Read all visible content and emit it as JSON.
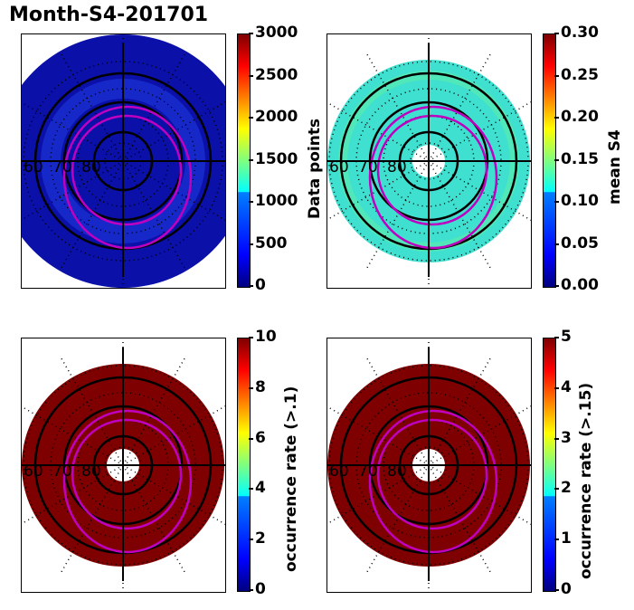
{
  "figure_title": "Month-S4-201701",
  "chart_data": [
    {
      "type": "heatmap",
      "projection": "polar-stereographic",
      "title": "",
      "colorbar_label": "Data points",
      "colorbar_ticks": [
        "0",
        "500",
        "1000",
        "1500",
        "2000",
        "2500",
        "3000"
      ],
      "colorbar_range": [
        0,
        3000
      ],
      "colormap": "jet",
      "latitude_labels": [
        "60",
        "70",
        "80"
      ],
      "dominant_value_description": "mostly 0-500, ring near 65-70 lat around 400-600"
    },
    {
      "type": "heatmap",
      "projection": "polar-stereographic",
      "title": "",
      "colorbar_label": "mean S4",
      "colorbar_ticks": [
        "0.00",
        "0.05",
        "0.10",
        "0.15",
        "0.20",
        "0.25",
        "0.30"
      ],
      "colorbar_range": [
        0,
        0.3
      ],
      "colormap": "jet",
      "latitude_labels": [
        "60",
        "70",
        "80"
      ],
      "dominant_value_description": "mostly 0.10-0.17"
    },
    {
      "type": "heatmap",
      "projection": "polar-stereographic",
      "title": "",
      "colorbar_label": "occurrence rate (>.1)",
      "colorbar_ticks": [
        "0",
        "2",
        "4",
        "6",
        "8",
        "10"
      ],
      "colorbar_range": [
        0,
        10
      ],
      "colormap": "jet",
      "latitude_labels": [
        "60",
        "70",
        "80"
      ],
      "dominant_value_description": "mostly saturated at 10"
    },
    {
      "type": "heatmap",
      "projection": "polar-stereographic",
      "title": "",
      "colorbar_label": "occurrence rate (>.15)",
      "colorbar_ticks": [
        "0",
        "1",
        "2",
        "3",
        "4",
        "5"
      ],
      "colorbar_range": [
        0,
        5
      ],
      "colormap": "jet",
      "latitude_labels": [
        "60",
        "70",
        "80"
      ],
      "dominant_value_description": "mostly saturated at 5"
    }
  ],
  "colors": {
    "magenta_contour": "#c000c0",
    "grid": "#000000",
    "panel1_fill": "#0a10a8",
    "panel2_fill": "#40e0d0",
    "panel34_fill": "#7f0000"
  }
}
